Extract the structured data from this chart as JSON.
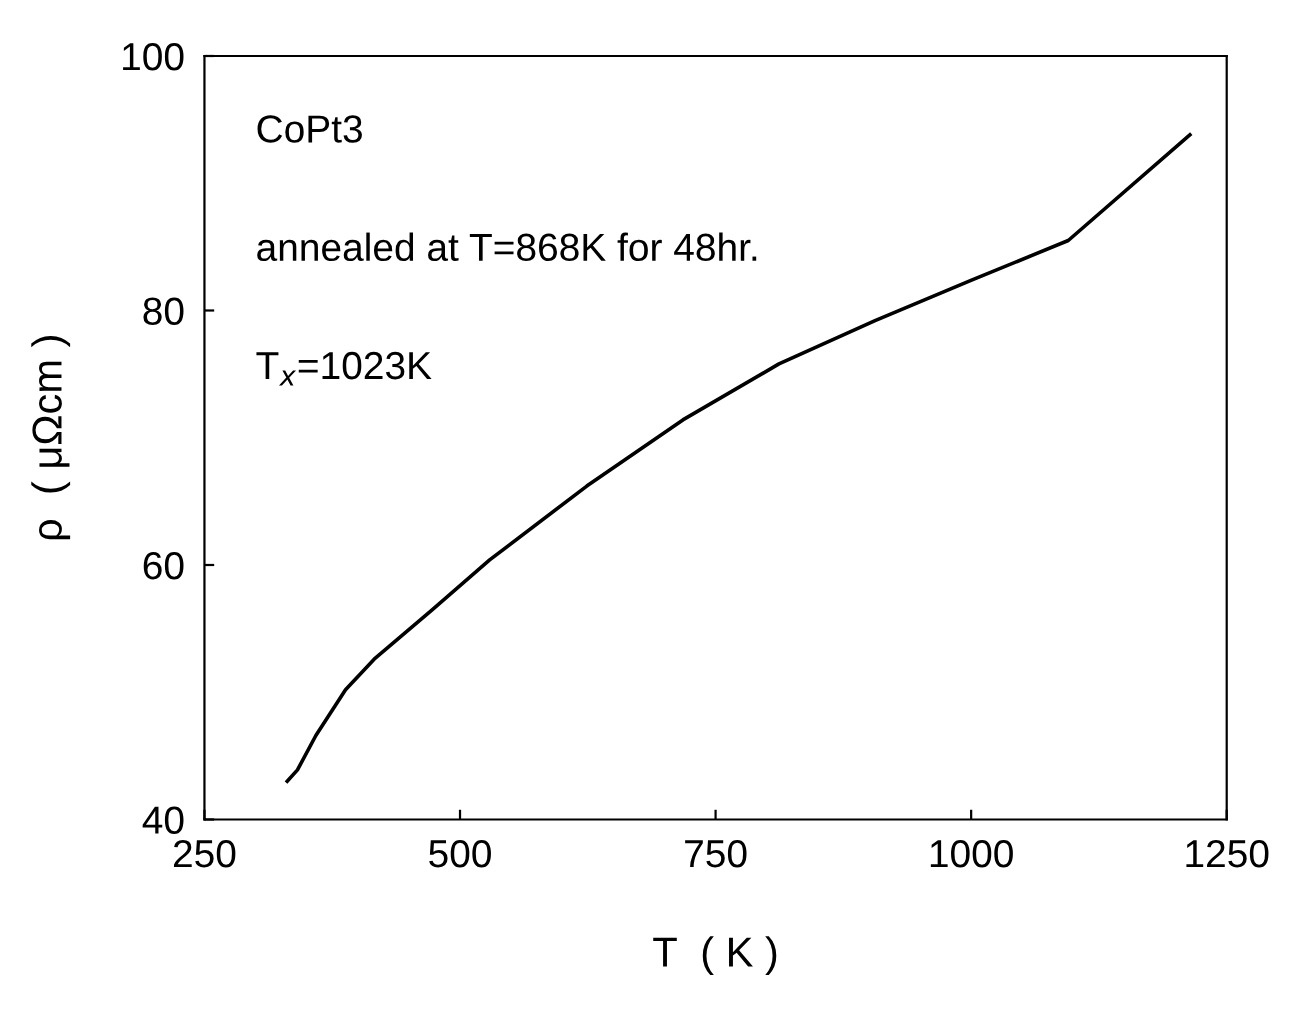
{
  "chart_data": {
    "type": "line",
    "xlabel": "T  ( K )",
    "ylabel": "ρ  ( μΩcm )",
    "annotations": [
      "CoPt3",
      "annealed at T=868K for 48hr.",
      "T$_{x}$=1023K"
    ],
    "x": [
      331,
      341,
      359,
      388,
      416,
      473,
      529,
      624,
      718,
      812,
      906,
      1001,
      1095,
      1214
    ],
    "series": [
      {
        "color": "#000000",
        "values": [
          43.0,
          43.9,
          46.6,
          50.2,
          52.6,
          56.5,
          60.4,
          66.2,
          71.4,
          75.8,
          79.2,
          82.4,
          85.5,
          93.8
        ]
      }
    ],
    "xlim": [
      250,
      1250
    ],
    "xticks": [
      250,
      500,
      750,
      1000,
      1250
    ],
    "ylim": [
      40,
      100
    ],
    "yticks": [
      40,
      60,
      80,
      100
    ],
    "grid": false,
    "legend": false,
    "marker": "none",
    "line_style": "solid"
  }
}
